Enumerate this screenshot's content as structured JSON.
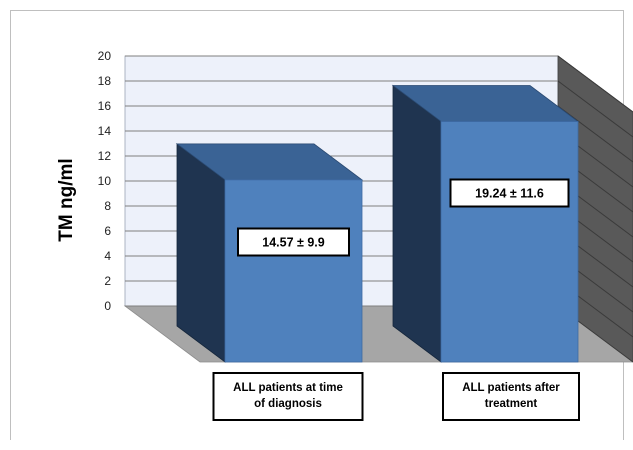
{
  "chart_data": {
    "type": "bar",
    "ylabel": "TM ng/ml",
    "ylim": [
      0,
      20
    ],
    "yticks": [
      "0",
      "2",
      "4",
      "6",
      "8",
      "10",
      "12",
      "14",
      "16",
      "18",
      "20"
    ],
    "grid": true,
    "categories": [
      "ALL patients at time of diagnosis",
      "ALL patients after treatment"
    ],
    "category_lines": [
      [
        "ALL patients at time",
        "of diagnosis"
      ],
      [
        "ALL patients after",
        "treatment"
      ]
    ],
    "values": [
      14.57,
      19.24
    ],
    "value_labels": [
      "14.57 ± 9.9",
      "19.24 ± 11.6"
    ]
  },
  "colors": {
    "bar_front": "#4f81bd",
    "bar_top": "#3a6395",
    "bar_side": "#1f3450",
    "back_wall": "#edf1fa",
    "floor": "#a6a6a6",
    "side_wall": "#595959",
    "grid": "#7f7f7f"
  }
}
